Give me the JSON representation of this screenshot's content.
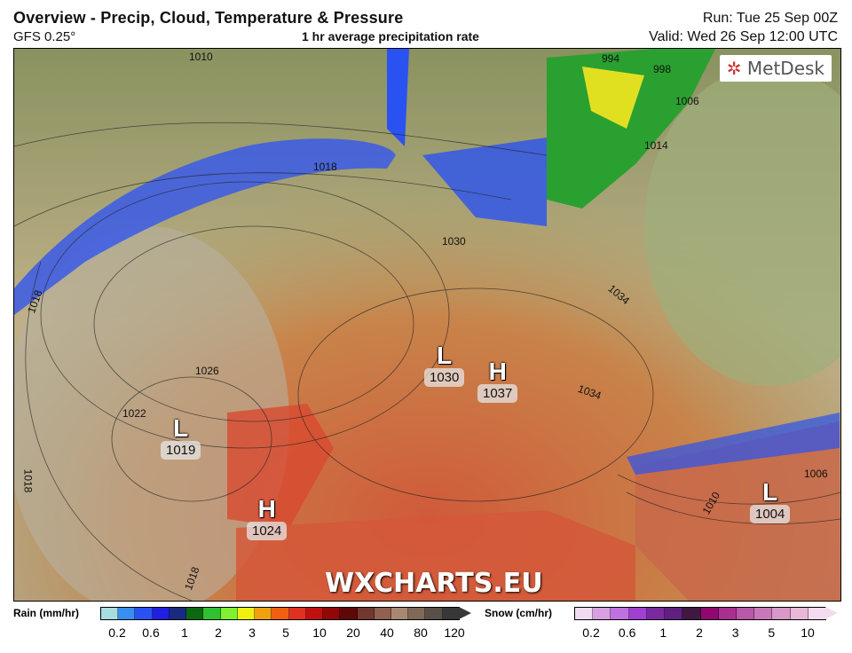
{
  "header": {
    "title": "Overview - Precip, Cloud, Temperature & Pressure",
    "model": "GFS 0.25°",
    "subtitle": "1 hr average precipitation rate",
    "run": "Run: Tue 25 Sep 00Z",
    "valid": "Valid: Wed 26 Sep 12:00 UTC"
  },
  "map": {
    "logo": "MetDesk",
    "watermark": "WXCHARTS.EU",
    "systems": [
      {
        "type": "L",
        "pressure": "1030"
      },
      {
        "type": "H",
        "pressure": "1037"
      },
      {
        "type": "L",
        "pressure": "1019"
      },
      {
        "type": "H",
        "pressure": "1024"
      },
      {
        "type": "L",
        "pressure": "1004"
      }
    ],
    "isobar_labels": [
      "1010",
      "1018",
      "1030",
      "1034",
      "1026",
      "1022",
      "994",
      "998",
      "1006",
      "1014",
      "1018",
      "1034",
      "1018",
      "1018",
      "1006",
      "1010"
    ]
  },
  "legend": {
    "rain": {
      "label": "Rain (mm/hr)",
      "ticks": [
        "0.2",
        "0.6",
        "1",
        "2",
        "3",
        "5",
        "10",
        "20",
        "40",
        "80",
        "120"
      ],
      "colors": [
        "#a8dde0",
        "#3a8ef0",
        "#2a52f0",
        "#2020e0",
        "#1a2a80",
        "#0b6a10",
        "#30c030",
        "#80f030",
        "#f0f010",
        "#f0a010",
        "#f06010",
        "#e03020",
        "#c01010",
        "#900808",
        "#600808",
        "#703830",
        "#906050",
        "#a88870",
        "#806858",
        "#585048",
        "#383838"
      ]
    },
    "snow": {
      "label": "Snow (cm/hr)",
      "ticks": [
        "0.2",
        "0.6",
        "1",
        "2",
        "3",
        "5",
        "10"
      ],
      "colors": [
        "#f0dcf0",
        "#d8a0e0",
        "#c070e0",
        "#a040d0",
        "#7a2aa0",
        "#602080",
        "#401840",
        "#900870",
        "#a83090",
        "#b858a8",
        "#c878b8",
        "#d898c8",
        "#e8b8d8",
        "#f4dcf0"
      ]
    }
  }
}
